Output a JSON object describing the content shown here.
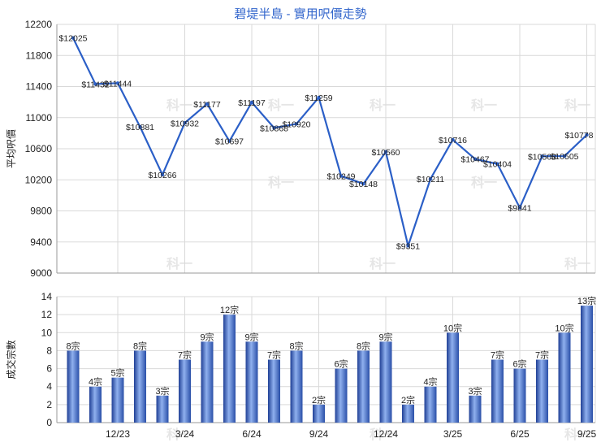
{
  "chart_data": [
    {
      "type": "line",
      "title": "碧堤半島 - 實用呎價走勢",
      "ylabel": "平均呎價",
      "ylim": [
        9000,
        12200
      ],
      "yticks": [
        9000,
        9400,
        9800,
        10200,
        10600,
        11000,
        11400,
        11800,
        12200
      ],
      "x_tick_labels": [
        "12/23",
        "3/24",
        "6/24",
        "9/24",
        "12/24",
        "3/25",
        "6/25",
        "9/25"
      ],
      "color": "#2b5fc7",
      "values": [
        12025,
        11432,
        11444,
        10881,
        10266,
        10932,
        11177,
        10697,
        11197,
        10868,
        10920,
        11259,
        10249,
        10148,
        10560,
        9351,
        10211,
        10716,
        10467,
        10404,
        9841,
        10503,
        10505,
        10778
      ],
      "labels": [
        "$12025",
        "$11432",
        "$11444",
        "$10881",
        "$10266",
        "$10932",
        "$11177",
        "$10697",
        "$11197",
        "$10868",
        "$10920",
        "$11259",
        "$10249",
        "$10148",
        "$10560",
        "$9351",
        "$10211",
        "$10716",
        "$10467",
        "$10404",
        "$9841",
        "$10503",
        "$10505",
        "$10778"
      ]
    },
    {
      "type": "bar",
      "ylabel": "成交宗數",
      "ylim": [
        0,
        14
      ],
      "yticks": [
        0,
        2,
        4,
        6,
        8,
        10,
        12,
        14
      ],
      "x_tick_labels": [
        "12/23",
        "3/24",
        "6/24",
        "9/24",
        "12/24",
        "3/25",
        "6/25",
        "9/25"
      ],
      "color": "#3d67c4",
      "values": [
        8,
        4,
        5,
        8,
        3,
        7,
        9,
        12,
        9,
        7,
        8,
        2,
        6,
        8,
        9,
        2,
        4,
        10,
        3,
        7,
        6,
        7,
        10,
        13
      ],
      "labels": [
        "8宗",
        "4宗",
        "5宗",
        "8宗",
        "3宗",
        "7宗",
        "9宗",
        "12宗",
        "9宗",
        "7宗",
        "8宗",
        "2宗",
        "6宗",
        "8宗",
        "9宗",
        "2宗",
        "4宗",
        "10宗",
        "3宗",
        "7宗",
        "6宗",
        "7宗",
        "10宗",
        "13宗"
      ]
    }
  ]
}
